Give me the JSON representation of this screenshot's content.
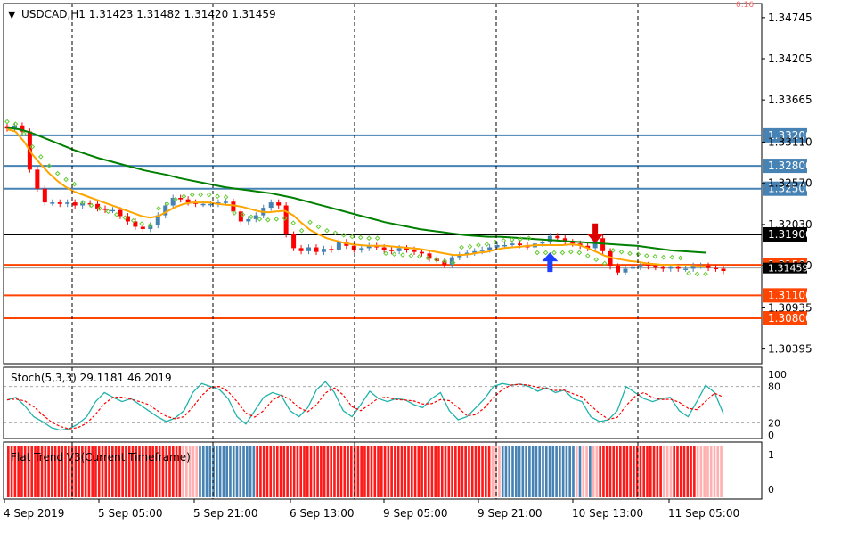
{
  "chart_data": {
    "type": "candlestick",
    "symbol_header": "USDCAD,H1  1.31423 1.31482 1.31420 1.31459",
    "price_axis": {
      "ticks": [
        "1.34745",
        "1.34205",
        "1.33665",
        "1.33110",
        "1.32570",
        "1.32030",
        "1.31490",
        "1.30935",
        "1.30395"
      ],
      "tick_values": [
        1.34745,
        1.34205,
        1.33665,
        1.3311,
        1.3257,
        1.3203,
        1.3149,
        1.30935,
        1.30395
      ],
      "ylim": [
        1.3025,
        1.3479
      ]
    },
    "time_axis": {
      "labels": [
        "4 Sep 2019",
        "5 Sep 05:00",
        "5 Sep 21:00",
        "6 Sep 13:00",
        "9 Sep 05:00",
        "9 Sep 21:00",
        "10 Sep 13:00",
        "11 Sep 05:00"
      ]
    },
    "horizontal_levels": [
      {
        "label": "1.33200",
        "value": 1.332,
        "color": "#4682b4"
      },
      {
        "label": "1.32800",
        "value": 1.328,
        "color": "#4682b4"
      },
      {
        "label": "1.32500",
        "value": 1.325,
        "color": "#4682b4"
      },
      {
        "label": "1.31900",
        "value": 1.319,
        "color": "#000000"
      },
      {
        "label": "1.31500",
        "value": 1.315,
        "color": "#ff4500"
      },
      {
        "label": "1.31100",
        "value": 1.311,
        "color": "#ff4500"
      },
      {
        "label": "1.30800",
        "value": 1.308,
        "color": "#ff4500"
      }
    ],
    "current_price_label": "1.31459",
    "top_right_marker": "0.16",
    "price_series": [
      1.3329,
      1.3333,
      1.3325,
      1.3275,
      1.325,
      1.3232,
      1.3232,
      1.323,
      1.3232,
      1.3228,
      1.3231,
      1.323,
      1.3224,
      1.3222,
      1.3222,
      1.3214,
      1.3207,
      1.32,
      1.3197,
      1.3202,
      1.3215,
      1.3228,
      1.3238,
      1.3236,
      1.3232,
      1.323,
      1.323,
      1.323,
      1.3232,
      1.3233,
      1.322,
      1.3207,
      1.321,
      1.3215,
      1.3225,
      1.3232,
      1.3228,
      1.319,
      1.3172,
      1.3168,
      1.3173,
      1.3167,
      1.3171,
      1.317,
      1.318,
      1.3175,
      1.317,
      1.3172,
      1.3175,
      1.3173,
      1.317,
      1.3168,
      1.3172,
      1.317,
      1.3167,
      1.3165,
      1.3158,
      1.3155,
      1.315,
      1.316,
      1.3163,
      1.3166,
      1.3168,
      1.317,
      1.3173,
      1.3176,
      1.3176,
      1.3178,
      1.3176,
      1.3173,
      1.3178,
      1.318,
      1.3188,
      1.3185,
      1.318,
      1.3178,
      1.3175,
      1.3172,
      1.3185,
      1.3168,
      1.3148,
      1.314,
      1.3145,
      1.3147,
      1.315,
      1.3148,
      1.3147,
      1.3145,
      1.3147,
      1.3145,
      1.3145,
      1.3149,
      1.3149,
      1.3146,
      1.3145,
      1.3142
    ],
    "ma_fast": [
      1.3328,
      1.3325,
      1.3312,
      1.3295,
      1.3282,
      1.327,
      1.326,
      1.3252,
      1.3246,
      1.3242,
      1.3238,
      1.3234,
      1.323,
      1.3226,
      1.3222,
      1.3218,
      1.3214,
      1.3212,
      1.3214,
      1.322,
      1.3226,
      1.323,
      1.3232,
      1.3232,
      1.3232,
      1.323,
      1.3229,
      1.3228,
      1.3226,
      1.3223,
      1.322,
      1.3219,
      1.322,
      1.3221,
      1.3215,
      1.3205,
      1.3196,
      1.319,
      1.3185,
      1.3182,
      1.3179,
      1.3177,
      1.3176,
      1.3175,
      1.3175,
      1.3175,
      1.3174,
      1.3173,
      1.3172,
      1.3171,
      1.3169,
      1.3167,
      1.3165,
      1.3163,
      1.3163,
      1.3164,
      1.3166,
      1.3167,
      1.317,
      1.3172,
      1.3173,
      1.3174,
      1.3175,
      1.3176,
      1.3176,
      1.3176,
      1.3176,
      1.3177,
      1.3176,
      1.3172,
      1.3167,
      1.3162,
      1.3159,
      1.3157,
      1.3155,
      1.3154,
      1.3152,
      1.3151,
      1.315,
      1.315,
      1.3149,
      1.3149,
      1.3148,
      1.3148
    ],
    "ma_slow": [
      1.333,
      1.3328,
      1.3324,
      1.3318,
      1.3312,
      1.3306,
      1.33,
      1.3295,
      1.329,
      1.3286,
      1.3282,
      1.3278,
      1.3274,
      1.3271,
      1.3268,
      1.3264,
      1.3261,
      1.3258,
      1.3255,
      1.3252,
      1.325,
      1.3248,
      1.3246,
      1.3244,
      1.3241,
      1.3238,
      1.3234,
      1.323,
      1.3226,
      1.3222,
      1.3218,
      1.3214,
      1.321,
      1.3206,
      1.3203,
      1.32,
      1.3197,
      1.3195,
      1.3193,
      1.3191,
      1.3189,
      1.3188,
      1.3187,
      1.3187,
      1.3186,
      1.3185,
      1.3184,
      1.3183,
      1.3182,
      1.3181,
      1.318,
      1.3179,
      1.3178,
      1.3177,
      1.3176,
      1.3175,
      1.3173,
      1.3171,
      1.3169,
      1.3168,
      1.3167,
      1.3166
    ],
    "stoch": {
      "label": "Stoch(5,3,3) 29.1181 46.2019",
      "levels": [
        "80",
        "20"
      ],
      "axis_ticks": [
        "100",
        "0"
      ],
      "main": [
        58,
        62,
        48,
        30,
        22,
        12,
        8,
        10,
        18,
        30,
        55,
        70,
        62,
        55,
        60,
        50,
        40,
        30,
        22,
        28,
        40,
        70,
        85,
        80,
        75,
        60,
        30,
        18,
        40,
        62,
        70,
        65,
        40,
        30,
        45,
        75,
        88,
        70,
        40,
        30,
        50,
        72,
        60,
        55,
        60,
        58,
        50,
        45,
        60,
        70,
        40,
        25,
        30,
        45,
        60,
        80,
        85,
        82,
        84,
        80,
        72,
        78,
        70,
        74,
        60,
        55,
        30,
        22,
        25,
        40,
        80,
        70,
        60,
        55,
        60,
        62,
        40,
        30,
        55,
        82,
        70,
        35
      ]
    },
    "flat_trend": {
      "label": "Flat Trend V3(Current Timeframe)",
      "axis_ticks": [
        "1",
        "0"
      ],
      "states": "RRRRRRRRRRRRRRRRRRRRRRRRRRRRRRRRRRRRRRRRRRRRRRRRRRRRLLLLLBBBBBBBBBBBBBBBBBRRRRRRRRRRRRRRRRRRRRRRRRRRRRRRRRRRRRRRRRRRRRRRRRRRRRRRRRRRRRRRRRRRRRRRLLLBBBBBBBBBBBBBBBBBBBBBBLBLLBLLRRRRRRRRRRRRRRRRRRRLLLRRRRRRRLLLLLLLL"
    },
    "signals": [
      {
        "kind": "buy-arrow",
        "color": "#1e40ff"
      },
      {
        "kind": "sell-arrow",
        "color": "#dd0000"
      }
    ],
    "colors": {
      "bull": "#4682b4",
      "bear": "#ff0000",
      "ma_fast": "#ffa500",
      "ma_slow": "#008000",
      "psar": "#66cc33",
      "stoch_main": "#20b2aa",
      "stoch_signal": "#ff0000",
      "grid": "#000000",
      "label_bg_blue": "#4682b4",
      "label_bg_orange": "#ff4500",
      "label_bg_black": "#000000"
    }
  }
}
